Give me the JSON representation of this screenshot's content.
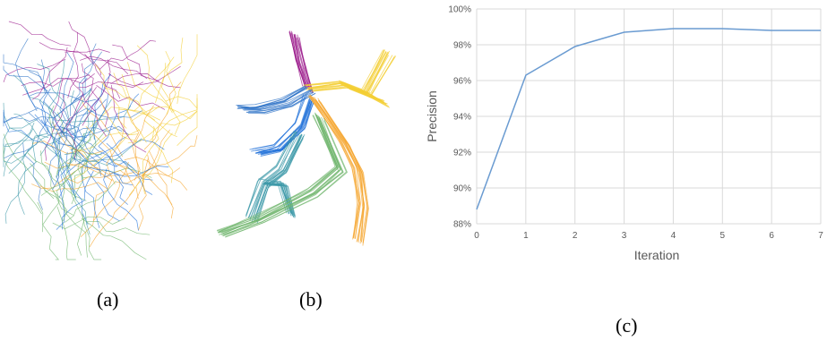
{
  "figures": {
    "a": {
      "caption": "(a)"
    },
    "b": {
      "caption": "(b)"
    },
    "c": {
      "caption": "(c)"
    }
  },
  "colors": {
    "line": "#6a9bd1",
    "grid": "#d9d9d9",
    "bundle_palette": [
      "#9b1b8c",
      "#2f74c7",
      "#1e6fd8",
      "#3c98a8",
      "#6fb56c",
      "#f5a52d",
      "#f3cf35"
    ]
  },
  "chart_data": {
    "type": "line",
    "xlabel": "Iteration",
    "ylabel": "Precision",
    "x": [
      0,
      1,
      2,
      3,
      4,
      5,
      6,
      7
    ],
    "xticks": [
      "0",
      "1",
      "2",
      "3",
      "4",
      "5",
      "6",
      "7"
    ],
    "ylim": [
      0.88,
      1.0
    ],
    "yticks": [
      "88%",
      "90%",
      "92%",
      "94%",
      "96%",
      "98%",
      "100%"
    ],
    "series": [
      {
        "values": [
          0.888,
          0.963,
          0.979,
          0.987,
          0.989,
          0.989,
          0.988,
          0.988
        ]
      }
    ],
    "grid": true
  }
}
